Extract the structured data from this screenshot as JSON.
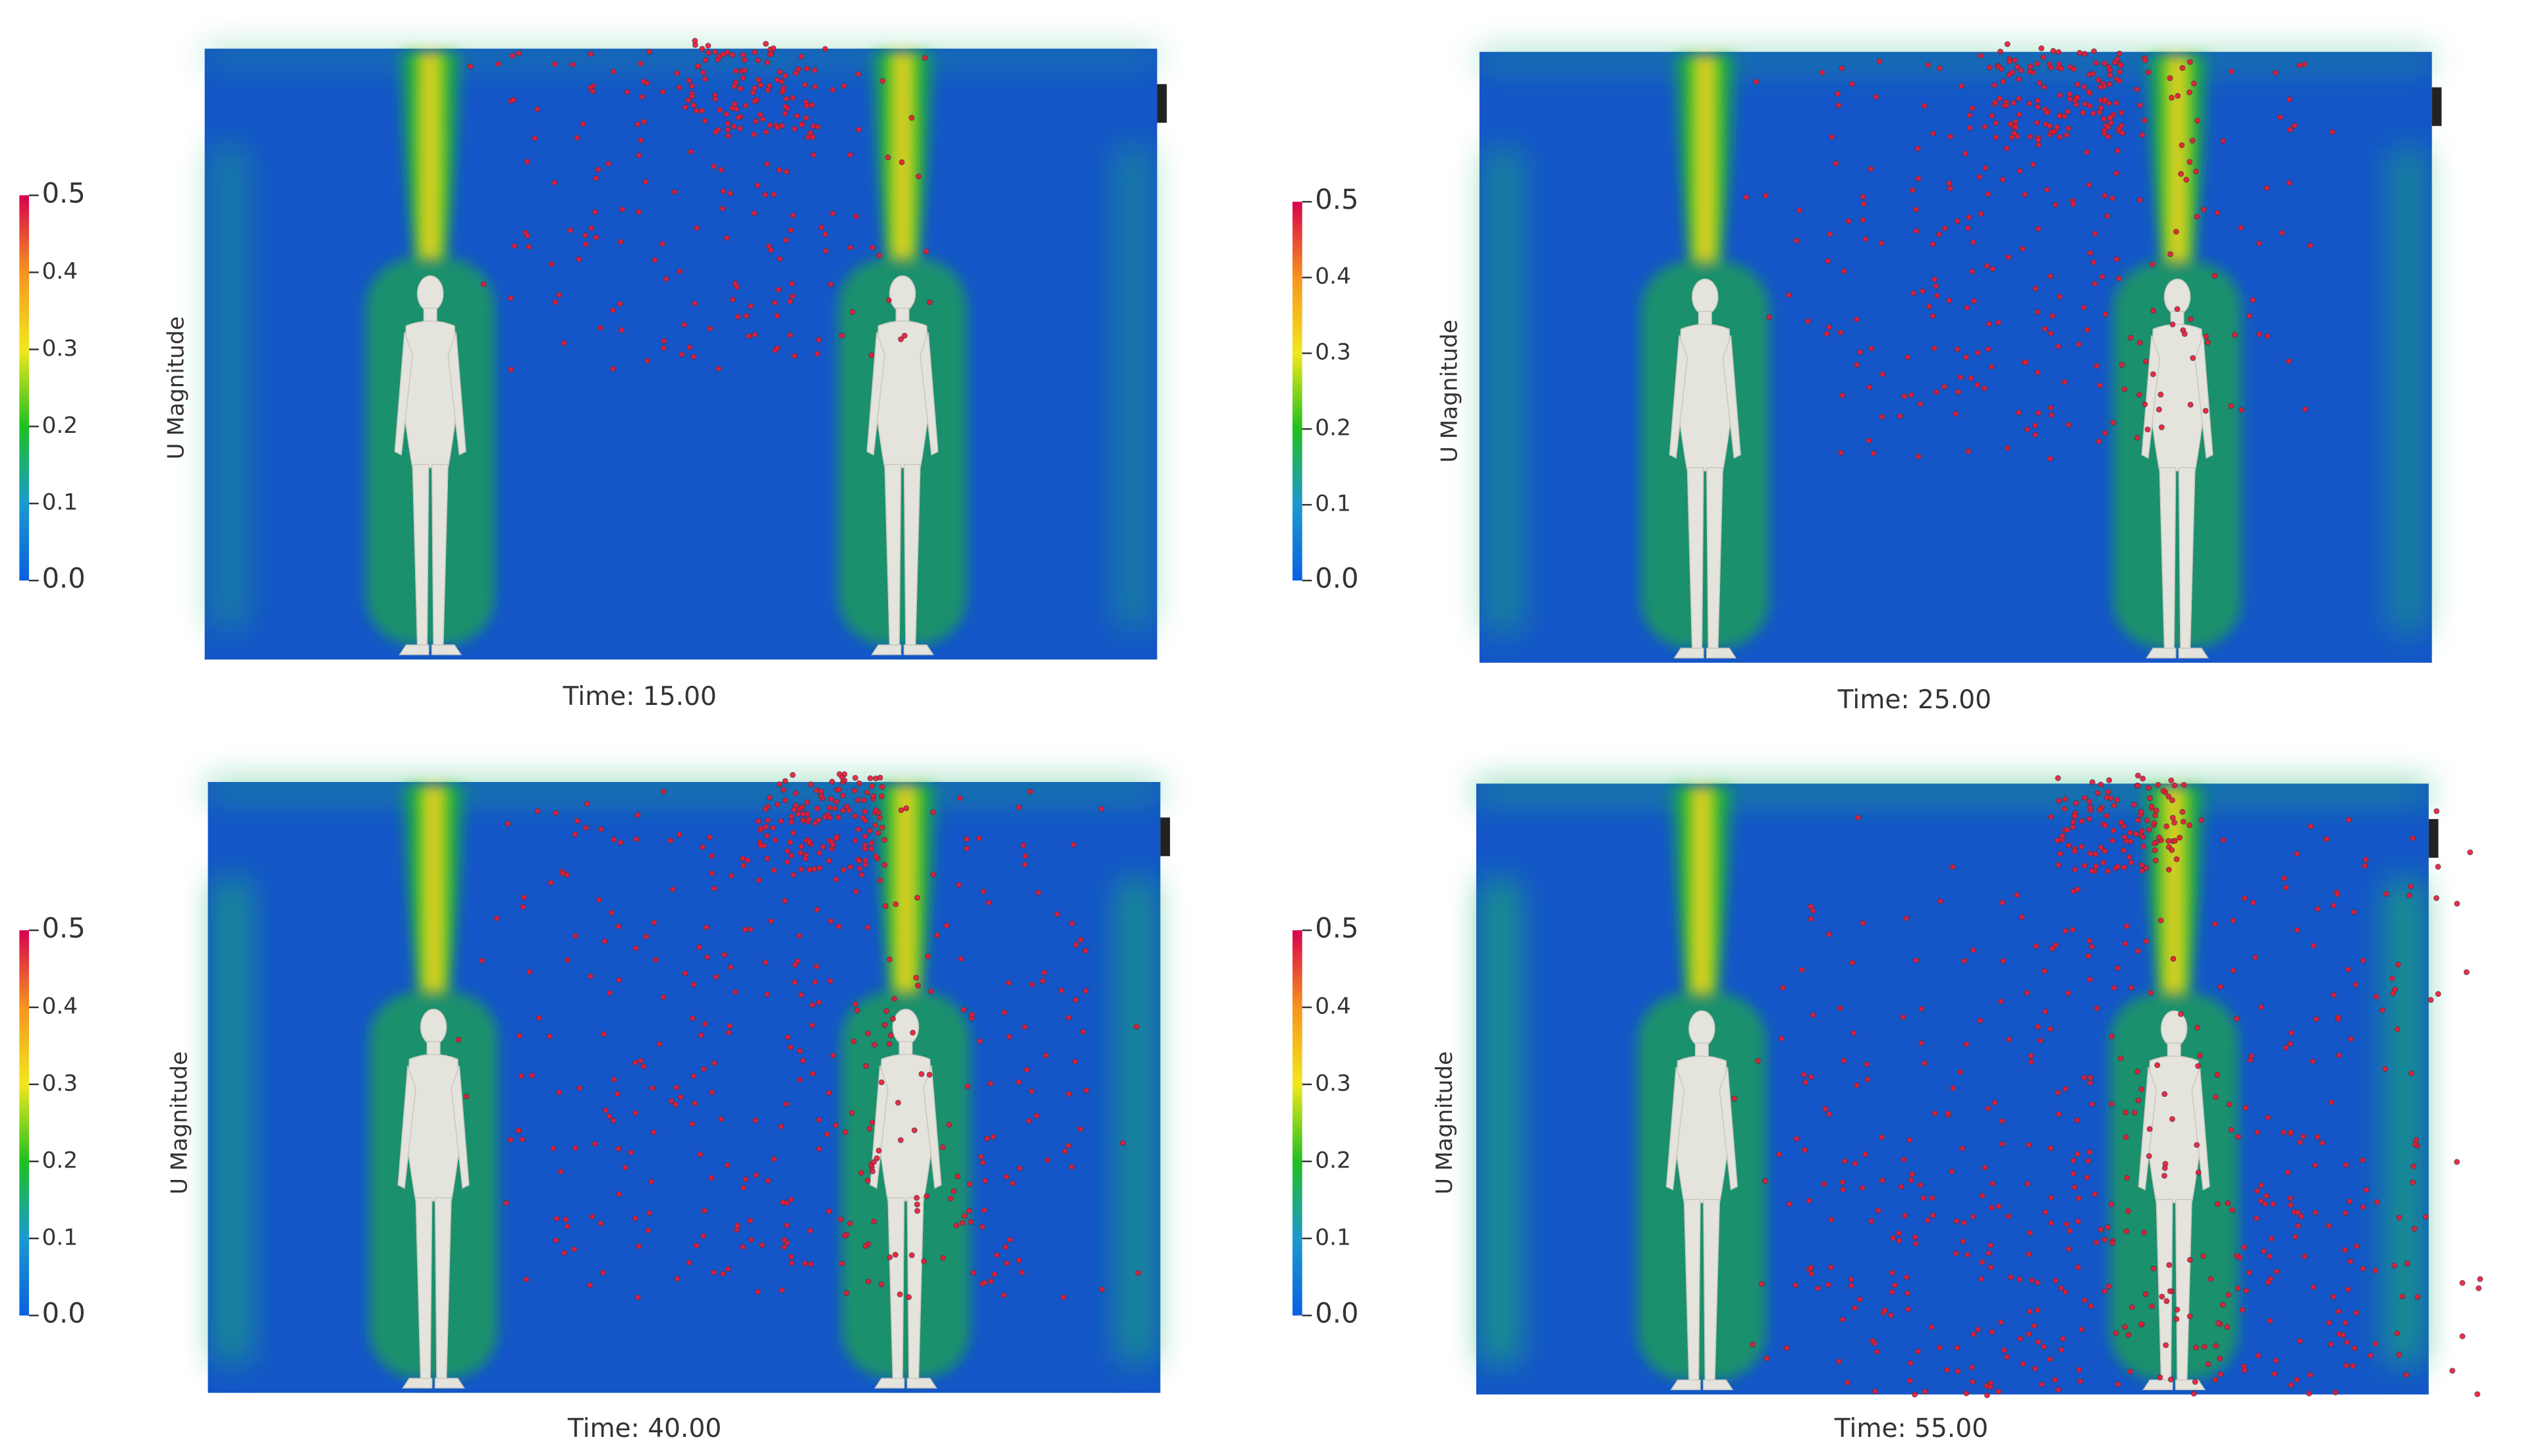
{
  "panels": [
    {
      "time_label": "Time: 15.00",
      "colorbar": {
        "title": "U Magnitude",
        "range": [
          0,
          0.5
        ],
        "ticks": [
          {
            "value": 0,
            "label": "0.0"
          },
          0.1,
          0.2,
          0.3,
          0.4,
          {
            "value": 0.5,
            "label": "0.5"
          }
        ]
      }
    },
    {
      "time_label": "Time: 25.00",
      "colorbar": {
        "title": "U Magnitude",
        "range": [
          0,
          0.5
        ],
        "ticks": [
          {
            "value": 0,
            "label": "0.0"
          },
          0.1,
          0.2,
          0.3,
          0.4,
          {
            "value": 0.5,
            "label": "0.5"
          }
        ]
      }
    },
    {
      "time_label": "Time: 40.00",
      "colorbar": {
        "title": "U Magnitude",
        "range": [
          0,
          0.5
        ],
        "ticks": [
          {
            "value": 0,
            "label": "0.0"
          },
          0.1,
          0.2,
          0.3,
          0.4,
          {
            "value": 0.5,
            "label": "0.5"
          }
        ]
      }
    },
    {
      "time_label": "Time: 55.00",
      "colorbar": {
        "title": "U Magnitude",
        "range": [
          0,
          0.5
        ],
        "ticks": [
          {
            "value": 0,
            "label": "0.0"
          },
          0.1,
          0.2,
          0.3,
          0.4,
          {
            "value": 0.5,
            "label": "0.5"
          }
        ]
      }
    }
  ]
}
